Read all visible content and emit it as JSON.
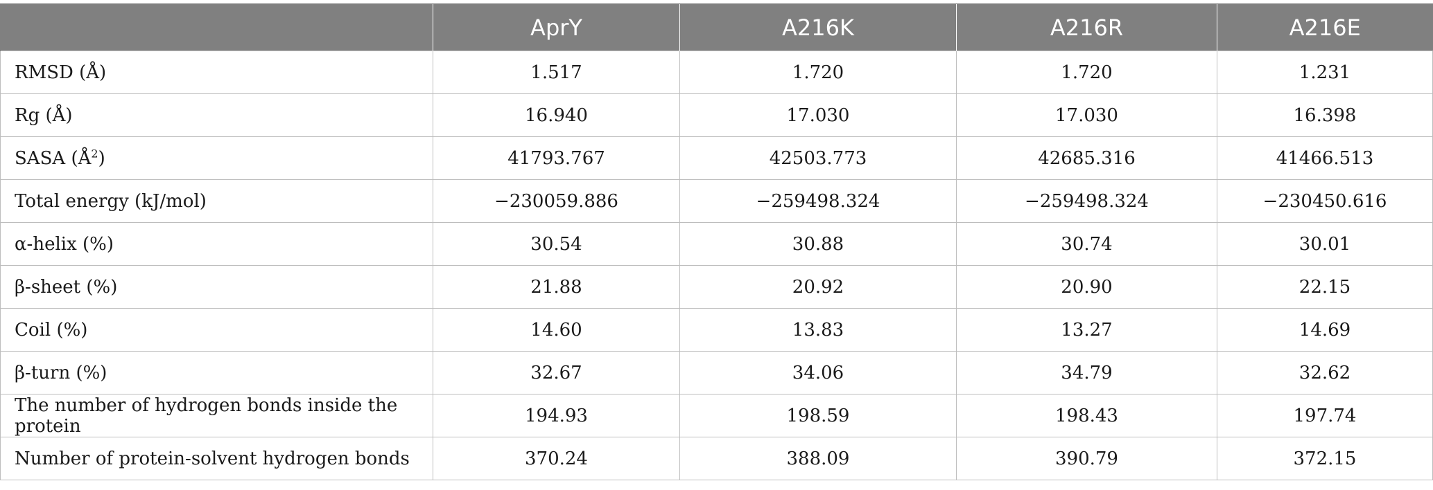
{
  "table": {
    "headers": [
      "",
      "AprY",
      "A216K",
      "A216R",
      "A216E"
    ],
    "rows": [
      {
        "label": "RMSD (Å)",
        "values": [
          "1.517",
          "1.720",
          "1.720",
          "1.231"
        ]
      },
      {
        "label": "Rg (Å)",
        "values": [
          "16.940",
          "17.030",
          "17.030",
          "16.398"
        ]
      },
      {
        "label_main": "SASA (Å",
        "label_sup": "2",
        "label_end": ")",
        "values": [
          "41793.767",
          "42503.773",
          "42685.316",
          "41466.513"
        ]
      },
      {
        "label": "Total energy (kJ/mol)",
        "values": [
          "−230059.886",
          "−259498.324",
          "−259498.324",
          "−230450.616"
        ]
      },
      {
        "label": "α-helix (%)",
        "values": [
          "30.54",
          "30.88",
          "30.74",
          "30.01"
        ]
      },
      {
        "label": "β-sheet (%)",
        "values": [
          "21.88",
          "20.92",
          "20.90",
          "22.15"
        ]
      },
      {
        "label": "Coil (%)",
        "values": [
          "14.60",
          "13.83",
          "13.27",
          "14.69"
        ]
      },
      {
        "label": "β-turn (%)",
        "values": [
          "32.67",
          "34.06",
          "34.79",
          "32.62"
        ]
      },
      {
        "label": "The number of hydrogen bonds inside the protein",
        "values": [
          "194.93",
          "198.59",
          "198.43",
          "197.74"
        ]
      },
      {
        "label": "Number of protein-solvent hydrogen bonds",
        "values": [
          "370.24",
          "388.09",
          "390.79",
          "372.15"
        ]
      }
    ]
  }
}
